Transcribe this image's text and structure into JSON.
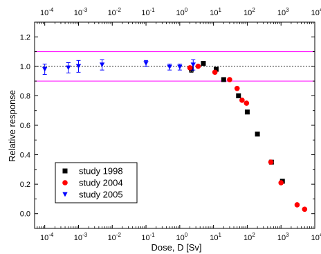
{
  "chart_data": {
    "type": "scatter",
    "xlabel": "Dose, D [Sv]",
    "ylabel": "Relative response",
    "x_scale": "log",
    "xlim": [
      5e-05,
      10000
    ],
    "ylim": [
      -0.1,
      1.3
    ],
    "x_ticks": [
      {
        "value": 0.0001,
        "base": "10",
        "exp": "-4"
      },
      {
        "value": 0.001,
        "base": "10",
        "exp": "-3"
      },
      {
        "value": 0.01,
        "base": "10",
        "exp": "-2"
      },
      {
        "value": 0.1,
        "base": "10",
        "exp": "-1"
      },
      {
        "value": 1,
        "base": "10",
        "exp": "0"
      },
      {
        "value": 10,
        "base": "10",
        "exp": "1"
      },
      {
        "value": 100,
        "base": "10",
        "exp": "2"
      },
      {
        "value": 1000,
        "base": "10",
        "exp": "3"
      },
      {
        "value": 10000,
        "base": "10",
        "exp": "4"
      }
    ],
    "y_ticks": [
      "0.0",
      "0.2",
      "0.4",
      "0.6",
      "0.8",
      "1.0",
      "1.2"
    ],
    "reference_lines": [
      {
        "y": 1.1,
        "color": "#ff00ff",
        "style": "solid"
      },
      {
        "y": 0.9,
        "color": "#ff00ff",
        "style": "solid"
      },
      {
        "y": 1.0,
        "color": "#333333",
        "style": "dotted"
      }
    ],
    "legend_position": "bottom-left",
    "series": [
      {
        "name": "study 1998",
        "marker": "square",
        "color": "#000000",
        "points": [
          {
            "x": 2.2,
            "y": 0.98,
            "err": 0.02
          },
          {
            "x": 5,
            "y": 1.02
          },
          {
            "x": 12,
            "y": 0.98
          },
          {
            "x": 20,
            "y": 0.91
          },
          {
            "x": 55,
            "y": 0.8
          },
          {
            "x": 100,
            "y": 0.69
          },
          {
            "x": 200,
            "y": 0.54
          },
          {
            "x": 520,
            "y": 0.35
          },
          {
            "x": 1100,
            "y": 0.22
          }
        ]
      },
      {
        "name": "study 2004",
        "marker": "circle",
        "color": "#ff0000",
        "points": [
          {
            "x": 2,
            "y": 0.99
          },
          {
            "x": 3.5,
            "y": 1.0
          },
          {
            "x": 11,
            "y": 0.96
          },
          {
            "x": 30,
            "y": 0.91
          },
          {
            "x": 50,
            "y": 0.85
          },
          {
            "x": 70,
            "y": 0.77
          },
          {
            "x": 95,
            "y": 0.75
          },
          {
            "x": 500,
            "y": 0.35
          },
          {
            "x": 1000,
            "y": 0.21
          },
          {
            "x": 3000,
            "y": 0.06
          },
          {
            "x": 5000,
            "y": 0.03
          }
        ]
      },
      {
        "name": "study 2005",
        "marker": "triangle-down",
        "color": "#0000ff",
        "points": [
          {
            "x": 0.0001,
            "y": 0.98,
            "err": 0.035
          },
          {
            "x": 0.0005,
            "y": 0.99,
            "err": 0.035
          },
          {
            "x": 0.001,
            "y": 1.0,
            "err": 0.04
          },
          {
            "x": 0.005,
            "y": 1.01,
            "err": 0.035
          },
          {
            "x": 0.1,
            "y": 1.02,
            "err": 0.02
          },
          {
            "x": 0.5,
            "y": 0.995,
            "err": 0.02
          },
          {
            "x": 1,
            "y": 0.995,
            "err": 0.02
          },
          {
            "x": 2.5,
            "y": 1.01,
            "err": 0.035
          }
        ]
      }
    ]
  }
}
